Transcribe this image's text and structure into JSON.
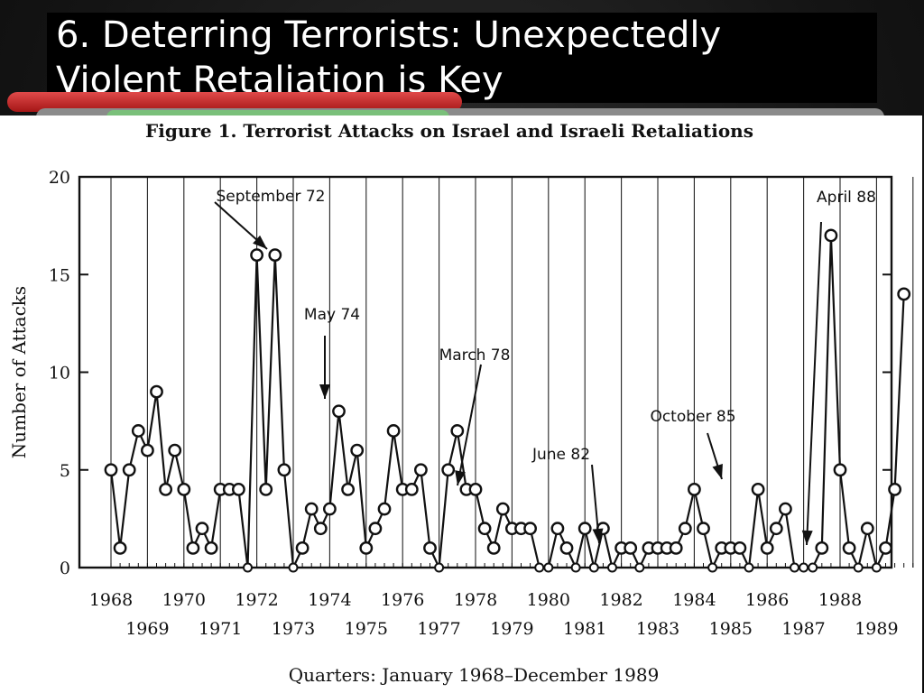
{
  "slide": {
    "title_line1": "6. Deterring Terrorists: Unexpectedly",
    "title_line2": "Violent Retaliation is Key"
  },
  "chart_data": {
    "type": "line",
    "title": "Figure 1. Terrorist Attacks on Israel and Israeli Retaliations",
    "xlabel": "Quarters: January 1968–December 1989",
    "ylabel": "Number of Attacks",
    "ylim": [
      0,
      20
    ],
    "yticks": [
      0,
      5,
      10,
      15,
      20
    ],
    "xlim": [
      1968,
      1990
    ],
    "year_labels_upper": [
      "1968",
      "1970",
      "1972",
      "1974",
      "1976",
      "1978",
      "1980",
      "1982",
      "1984",
      "1986",
      "1988"
    ],
    "year_labels_lower": [
      "1969",
      "1971",
      "1973",
      "1975",
      "1977",
      "1979",
      "1981",
      "1983",
      "1985",
      "1987",
      "1989"
    ],
    "grid": "vertical",
    "series": [
      {
        "values": [
          5,
          1,
          5,
          7,
          6,
          9,
          4,
          6,
          4,
          1,
          2,
          1,
          4,
          4,
          4,
          0,
          16,
          4,
          16,
          5,
          0,
          1,
          3,
          2,
          3,
          8,
          4,
          6,
          1,
          2,
          3,
          7,
          4,
          4,
          5,
          1,
          0,
          5,
          7,
          4,
          4,
          2,
          1,
          3,
          2,
          2,
          2,
          0,
          0,
          2,
          1,
          0,
          2,
          0,
          2,
          0,
          1,
          1,
          0,
          1,
          1,
          1,
          1,
          2,
          4,
          2,
          0,
          1,
          1,
          1,
          0,
          4,
          1,
          2,
          3,
          0,
          0,
          0,
          1,
          17,
          5,
          1,
          0,
          2,
          0,
          1,
          4,
          14
        ]
      }
    ],
    "annotations": [
      {
        "text": "September  72",
        "year": 1972.6
      },
      {
        "text": "May  74",
        "year": 1974.25
      },
      {
        "text": "March  78",
        "year": 1978.0
      },
      {
        "text": "June  82",
        "year": 1982.25
      },
      {
        "text": "October  85",
        "year": 1985.75
      },
      {
        "text": "April  88",
        "year": 1988.25
      }
    ]
  }
}
